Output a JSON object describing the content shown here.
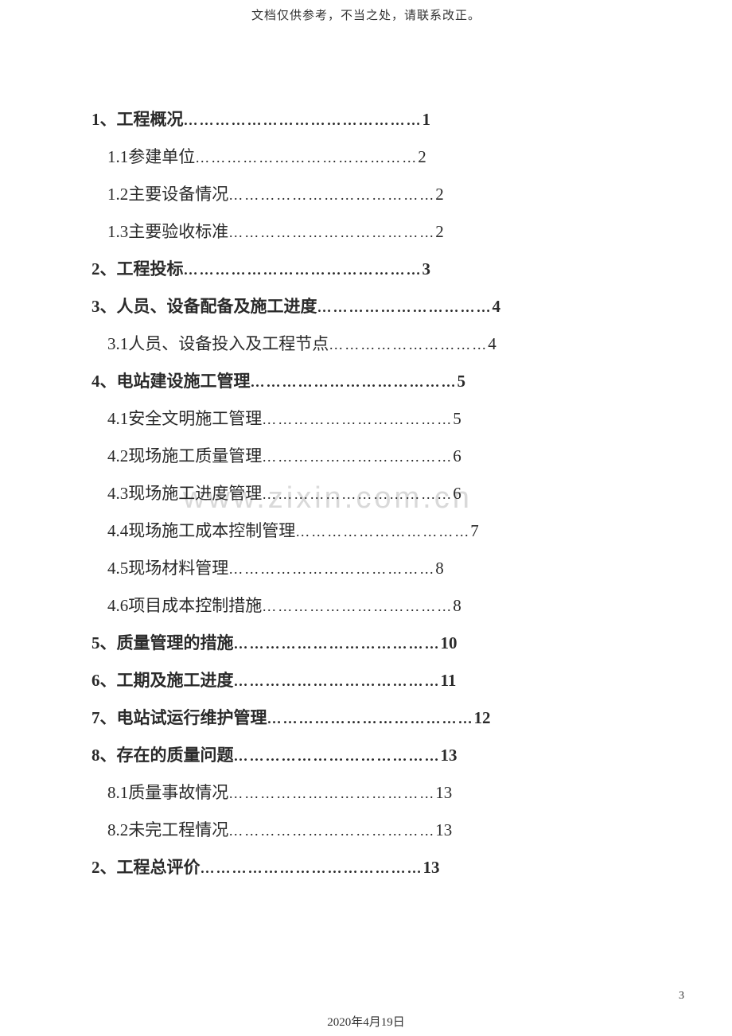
{
  "header": {
    "note": "文档仅供参考，不当之处，请联系改正。"
  },
  "watermark": "www.zixin.com.cn",
  "toc": [
    {
      "level": 1,
      "label": "1、工程概况",
      "leader": "………………………………………",
      "page": "1"
    },
    {
      "level": 2,
      "label": "1.1参建单位",
      "leader": "……………………………………",
      "page": "2"
    },
    {
      "level": 2,
      "label": "1.2主要设备情况",
      "leader": "…………………………………",
      "page": "2"
    },
    {
      "level": 2,
      "label": "1.3主要验收标准",
      "leader": "…………………………………",
      "page": "2"
    },
    {
      "level": 1,
      "label": "2、工程投标",
      "leader": "………………………………………",
      "page": "3"
    },
    {
      "level": 1,
      "label": "3、人员、设备配备及施工进度",
      "leader": "……………………………",
      "page": "4"
    },
    {
      "level": 2,
      "label": "3.1人员、设备投入及工程节点",
      "leader": "…………………………",
      "page": "4"
    },
    {
      "level": 1,
      "label": "4、电站建设施工管理",
      "leader": "…………………………………",
      "page": "5"
    },
    {
      "level": 2,
      "label": "4.1安全文明施工管理",
      "leader": "………………………………",
      "page": "5"
    },
    {
      "level": 2,
      "label": "4.2现场施工质量管理",
      "leader": "………………………………",
      "page": "6"
    },
    {
      "level": 2,
      "label": "4.3现场施工进度管理",
      "leader": "………………………………",
      "page": "6"
    },
    {
      "level": 2,
      "label": "4.4现场施工成本控制管理",
      "leader": "……………………………",
      "page": "7"
    },
    {
      "level": 2,
      "label": "4.5现场材料管理",
      "leader": "…………………………………",
      "page": "8"
    },
    {
      "level": 2,
      "label": "4.6项目成本控制措施",
      "leader": "………………………………",
      "page": "8"
    },
    {
      "level": 1,
      "label": "5、质量管理的措施",
      "leader": "…………………………………",
      "page": "10"
    },
    {
      "level": 1,
      "label": "6、工期及施工进度",
      "leader": "…………………………………",
      "page": "11"
    },
    {
      "level": 1,
      "label": "7、电站试运行维护管理",
      "leader": "…………………………………",
      "page": "12"
    },
    {
      "level": 1,
      "label": "8、存在的质量问题",
      "leader": "…………………………………",
      "page": "13"
    },
    {
      "level": 2,
      "label": "8.1质量事故情况",
      "leader": "…………………………………",
      "page": "13"
    },
    {
      "level": 2,
      "label": "8.2未完工程情况",
      "leader": "…………………………………",
      "page": "13"
    },
    {
      "level": 1,
      "label": "2、工程总评价",
      "leader": "……………………………………",
      "page": "13"
    }
  ],
  "footer": {
    "date": "2020年4月19日",
    "page_number": "3"
  }
}
